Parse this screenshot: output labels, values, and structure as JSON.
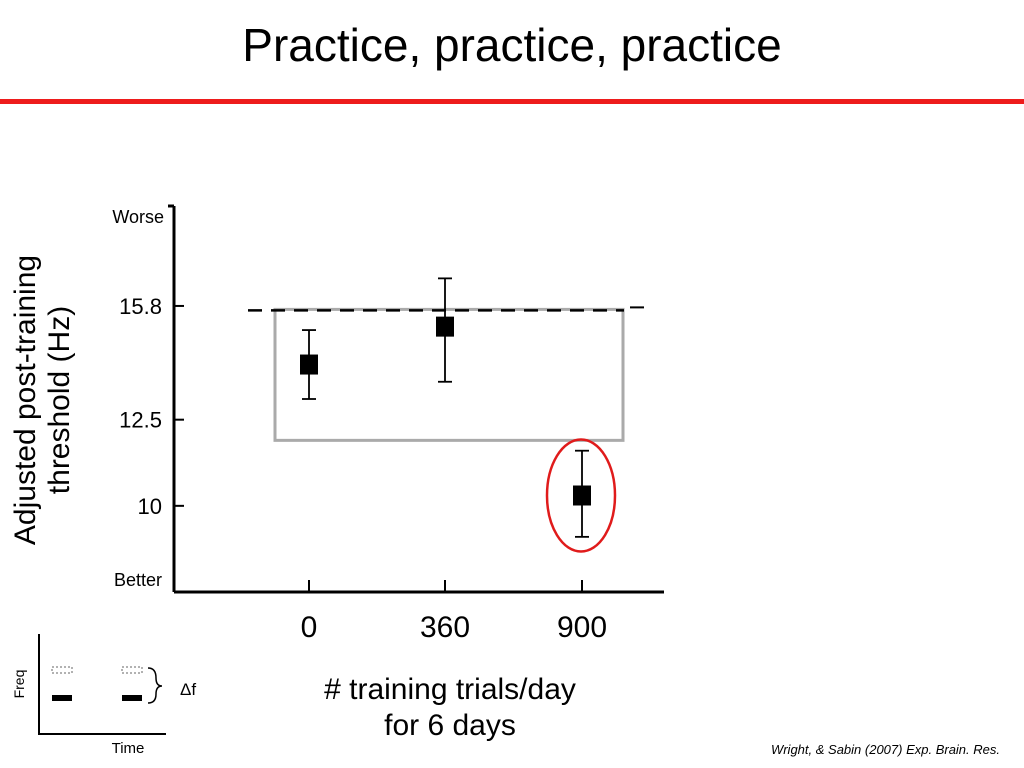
{
  "title": "Practice, practice, practice",
  "chart_data": {
    "type": "scatter",
    "ylabel": [
      "Adjusted post-training",
      "threshold (Hz)"
    ],
    "xlabel": [
      "# training trials/day",
      "for 6 days"
    ],
    "categories": [
      "0",
      "360",
      "900"
    ],
    "y_tick_labels": [
      {
        "value": 15.8,
        "label": "15.8"
      },
      {
        "value": 12.5,
        "label": "12.5"
      },
      {
        "value": 10,
        "label": "10"
      }
    ],
    "y_end_labels": {
      "top": "Worse",
      "bottom": "Better"
    },
    "ylim": [
      7.5,
      18.7
    ],
    "reference_line": 15.7,
    "grey_box": {
      "x_from": "0",
      "x_to": "900",
      "y_low": 11.9,
      "y_high": 15.7
    },
    "series": [
      {
        "points": [
          {
            "x": "0",
            "y": 14.1,
            "err_low": 13.1,
            "err_high": 15.1
          },
          {
            "x": "360",
            "y": 15.2,
            "err_low": 13.6,
            "err_high": 16.6
          },
          {
            "x": "900",
            "y": 10.3,
            "err_low": 9.1,
            "err_high": 11.6
          }
        ]
      }
    ],
    "highlight_category": "900",
    "highlight_color": "#e01b1b",
    "grid": false
  },
  "inset": {
    "ylabel": "Freq",
    "xlabel": "Time",
    "delta_label": "Δf"
  },
  "citation": "Wright, & Sabin (2007) Exp. Brain. Res."
}
